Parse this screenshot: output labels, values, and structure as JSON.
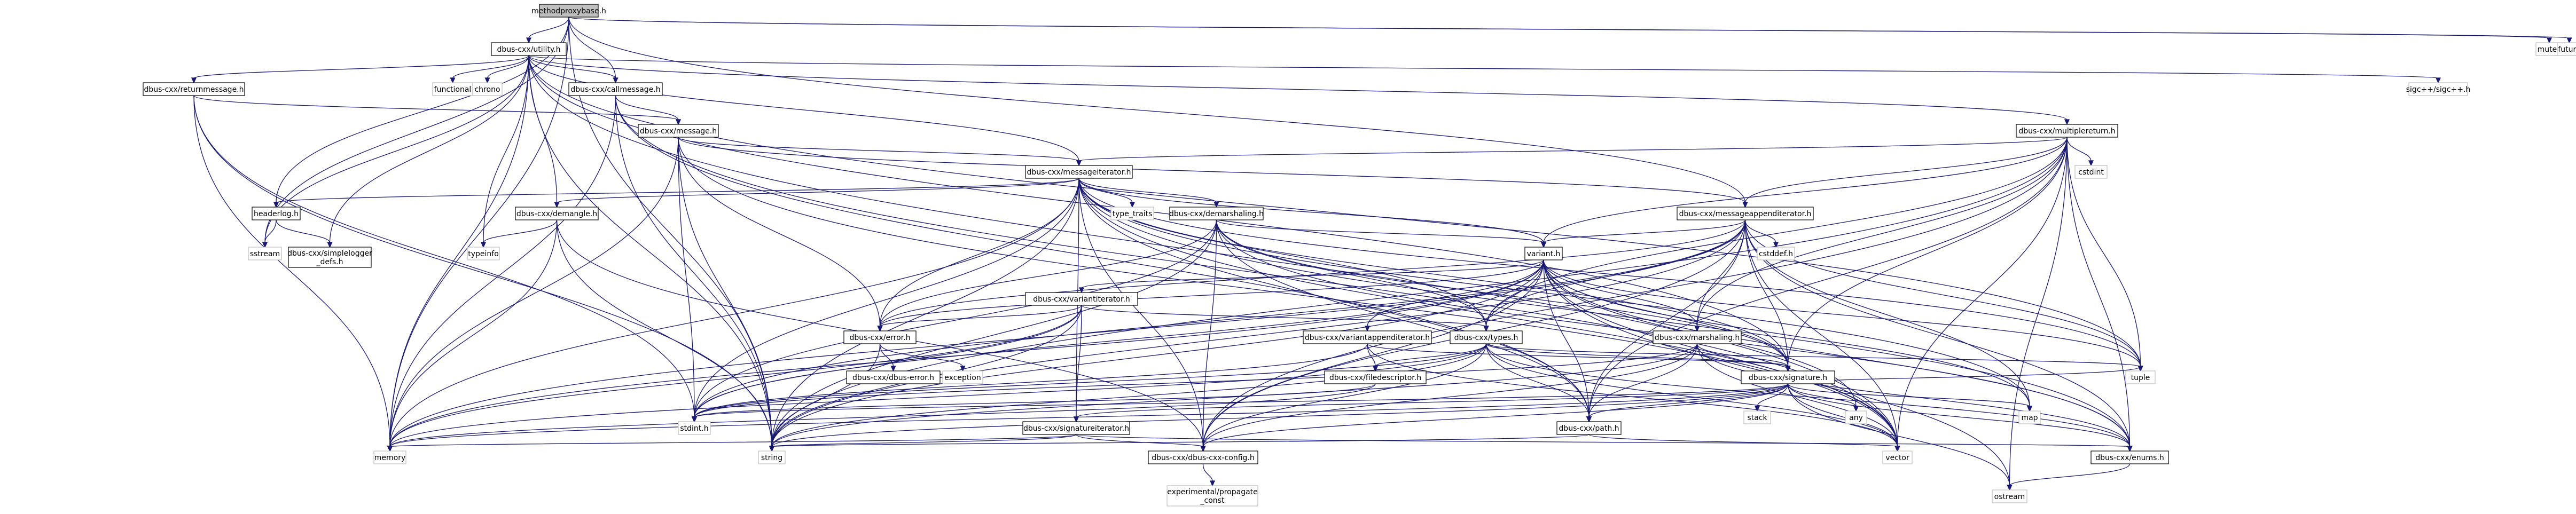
{
  "colors": {
    "edge": "#191970",
    "border": "#000000",
    "external_border": "#bfbfbf",
    "root_fill": "#bfbfbf",
    "node_fill": "#ffffff"
  },
  "nodes": [
    {
      "id": "root",
      "label": [
        "methodproxybase.h"
      ],
      "kind": "root"
    },
    {
      "id": "utility",
      "label": [
        "dbus-cxx/utility.h"
      ],
      "kind": "file"
    },
    {
      "id": "mutex",
      "label": [
        "mutex"
      ],
      "kind": "external"
    },
    {
      "id": "future",
      "label": [
        "future"
      ],
      "kind": "external"
    },
    {
      "id": "returnmessage",
      "label": [
        "dbus-cxx/returnmessage.h"
      ],
      "kind": "file"
    },
    {
      "id": "functional",
      "label": [
        "functional"
      ],
      "kind": "external"
    },
    {
      "id": "chrono",
      "label": [
        "chrono"
      ],
      "kind": "external"
    },
    {
      "id": "callmessage",
      "label": [
        "dbus-cxx/callmessage.h"
      ],
      "kind": "file"
    },
    {
      "id": "sigc",
      "label": [
        "sigc++/sigc++.h"
      ],
      "kind": "external"
    },
    {
      "id": "message",
      "label": [
        "dbus-cxx/message.h"
      ],
      "kind": "file"
    },
    {
      "id": "multiplereturn",
      "label": [
        "dbus-cxx/multiplereturn.h"
      ],
      "kind": "file"
    },
    {
      "id": "cstdint",
      "label": [
        "cstdint"
      ],
      "kind": "external"
    },
    {
      "id": "messageiterator",
      "label": [
        "dbus-cxx/messageiterator.h"
      ],
      "kind": "file"
    },
    {
      "id": "headerlog",
      "label": [
        "headerlog.h"
      ],
      "kind": "file"
    },
    {
      "id": "demangle",
      "label": [
        "dbus-cxx/demangle.h"
      ],
      "kind": "file"
    },
    {
      "id": "typetraits",
      "label": [
        "type_traits"
      ],
      "kind": "external"
    },
    {
      "id": "demarshaling",
      "label": [
        "dbus-cxx/demarshaling.h"
      ],
      "kind": "file"
    },
    {
      "id": "messageappenditerator",
      "label": [
        "dbus-cxx/messageappenditerator.h"
      ],
      "kind": "file"
    },
    {
      "id": "sstream",
      "label": [
        "sstream"
      ],
      "kind": "external"
    },
    {
      "id": "simplelogger",
      "label": [
        "dbus-cxx/simplelogger",
        "_defs.h"
      ],
      "kind": "file"
    },
    {
      "id": "typeinfo",
      "label": [
        "typeinfo"
      ],
      "kind": "external"
    },
    {
      "id": "cstddef",
      "label": [
        "cstddef.h"
      ],
      "kind": "external"
    },
    {
      "id": "variant",
      "label": [
        "variant.h"
      ],
      "kind": "file"
    },
    {
      "id": "variantiterator",
      "label": [
        "dbus-cxx/variantiterator.h"
      ],
      "kind": "file"
    },
    {
      "id": "error",
      "label": [
        "dbus-cxx/error.h"
      ],
      "kind": "file"
    },
    {
      "id": "variantappenditerator",
      "label": [
        "dbus-cxx/variantappenditerator.h"
      ],
      "kind": "file"
    },
    {
      "id": "types",
      "label": [
        "dbus-cxx/types.h"
      ],
      "kind": "file"
    },
    {
      "id": "marshaling",
      "label": [
        "dbus-cxx/marshaling.h"
      ],
      "kind": "file"
    },
    {
      "id": "dbuserror",
      "label": [
        "dbus-cxx/dbus-error.h"
      ],
      "kind": "file"
    },
    {
      "id": "exception",
      "label": [
        "exception"
      ],
      "kind": "external"
    },
    {
      "id": "filedescriptor",
      "label": [
        "dbus-cxx/filedescriptor.h"
      ],
      "kind": "file"
    },
    {
      "id": "signature",
      "label": [
        "dbus-cxx/signature.h"
      ],
      "kind": "file"
    },
    {
      "id": "tuple",
      "label": [
        "tuple"
      ],
      "kind": "external"
    },
    {
      "id": "any",
      "label": [
        "any"
      ],
      "kind": "external"
    },
    {
      "id": "map",
      "label": [
        "map"
      ],
      "kind": "external"
    },
    {
      "id": "stdint",
      "label": [
        "stdint.h"
      ],
      "kind": "external"
    },
    {
      "id": "path",
      "label": [
        "dbus-cxx/path.h"
      ],
      "kind": "file"
    },
    {
      "id": "stack",
      "label": [
        "stack"
      ],
      "kind": "external"
    },
    {
      "id": "signatureiterator",
      "label": [
        "dbus-cxx/signatureiterator.h"
      ],
      "kind": "file"
    },
    {
      "id": "memory",
      "label": [
        "memory"
      ],
      "kind": "external"
    },
    {
      "id": "string",
      "label": [
        "string"
      ],
      "kind": "external"
    },
    {
      "id": "config",
      "label": [
        "dbus-cxx/dbus-cxx-config.h"
      ],
      "kind": "file"
    },
    {
      "id": "vector",
      "label": [
        "vector"
      ],
      "kind": "external"
    },
    {
      "id": "enums",
      "label": [
        "dbus-cxx/enums.h"
      ],
      "kind": "file"
    },
    {
      "id": "ostream",
      "label": [
        "ostream"
      ],
      "kind": "external"
    },
    {
      "id": "propagate",
      "label": [
        "experimental/propagate",
        "_const"
      ],
      "kind": "external"
    }
  ],
  "edges": [
    [
      "root",
      "utility"
    ],
    [
      "root",
      "mutex"
    ],
    [
      "root",
      "future"
    ],
    [
      "root",
      "callmessage"
    ],
    [
      "root",
      "headerlog"
    ],
    [
      "root",
      "sstream"
    ],
    [
      "root",
      "memory"
    ],
    [
      "root",
      "string"
    ],
    [
      "root",
      "messageappenditerator"
    ],
    [
      "utility",
      "returnmessage"
    ],
    [
      "utility",
      "functional"
    ],
    [
      "utility",
      "chrono"
    ],
    [
      "utility",
      "callmessage"
    ],
    [
      "utility",
      "sigc"
    ],
    [
      "utility",
      "multiplereturn"
    ],
    [
      "utility",
      "messageiterator"
    ],
    [
      "utility",
      "demangle"
    ],
    [
      "utility",
      "simplelogger"
    ],
    [
      "utility",
      "typeinfo"
    ],
    [
      "utility",
      "sstream"
    ],
    [
      "utility",
      "memory"
    ],
    [
      "utility",
      "string"
    ],
    [
      "utility",
      "tuple"
    ],
    [
      "utility",
      "vector"
    ],
    [
      "utility",
      "signature"
    ],
    [
      "returnmessage",
      "message"
    ],
    [
      "returnmessage",
      "memory"
    ],
    [
      "returnmessage",
      "string"
    ],
    [
      "returnmessage",
      "stdint"
    ],
    [
      "callmessage",
      "message"
    ],
    [
      "callmessage",
      "memory"
    ],
    [
      "callmessage",
      "string"
    ],
    [
      "callmessage",
      "path"
    ],
    [
      "callmessage",
      "vector"
    ],
    [
      "message",
      "messageiterator"
    ],
    [
      "message",
      "messageappenditerator"
    ],
    [
      "message",
      "error"
    ],
    [
      "message",
      "stdint"
    ],
    [
      "message",
      "memory"
    ],
    [
      "message",
      "string"
    ],
    [
      "message",
      "vector"
    ],
    [
      "multiplereturn",
      "cstdint"
    ],
    [
      "multiplereturn",
      "messageiterator"
    ],
    [
      "multiplereturn",
      "messageappenditerator"
    ],
    [
      "multiplereturn",
      "types"
    ],
    [
      "multiplereturn",
      "signature"
    ],
    [
      "multiplereturn",
      "tuple"
    ],
    [
      "multiplereturn",
      "marshaling"
    ],
    [
      "multiplereturn",
      "config"
    ],
    [
      "multiplereturn",
      "variant"
    ],
    [
      "multiplereturn",
      "vector"
    ],
    [
      "multiplereturn",
      "enums"
    ],
    [
      "multiplereturn",
      "ostream"
    ],
    [
      "multiplereturn",
      "path"
    ],
    [
      "multiplereturn",
      "string"
    ],
    [
      "messageiterator",
      "headerlog"
    ],
    [
      "messageiterator",
      "demangle"
    ],
    [
      "messageiterator",
      "typetraits"
    ],
    [
      "messageiterator",
      "demarshaling"
    ],
    [
      "messageiterator",
      "variant"
    ],
    [
      "messageiterator",
      "error"
    ],
    [
      "messageiterator",
      "signatureiterator"
    ],
    [
      "messageiterator",
      "types"
    ],
    [
      "messageiterator",
      "signature"
    ],
    [
      "messageiterator",
      "config"
    ],
    [
      "messageiterator",
      "stdint"
    ],
    [
      "messageiterator",
      "memory"
    ],
    [
      "messageiterator",
      "string"
    ],
    [
      "messageiterator",
      "vector"
    ],
    [
      "messageiterator",
      "tuple"
    ],
    [
      "messageiterator",
      "map"
    ],
    [
      "messageiterator",
      "enums"
    ],
    [
      "messageiterator",
      "path"
    ],
    [
      "headerlog",
      "sstream"
    ],
    [
      "headerlog",
      "simplelogger"
    ],
    [
      "demangle",
      "typeinfo"
    ],
    [
      "demangle",
      "string"
    ],
    [
      "demangle",
      "memory"
    ],
    [
      "demangle",
      "config"
    ],
    [
      "demarshaling",
      "variant"
    ],
    [
      "demarshaling",
      "signature"
    ],
    [
      "demarshaling",
      "config"
    ],
    [
      "demarshaling",
      "error"
    ],
    [
      "demarshaling",
      "string"
    ],
    [
      "demarshaling",
      "stdint"
    ],
    [
      "demarshaling",
      "path"
    ],
    [
      "demarshaling",
      "enums"
    ],
    [
      "demarshaling",
      "types"
    ],
    [
      "messageappenditerator",
      "cstddef"
    ],
    [
      "messageappenditerator",
      "variant"
    ],
    [
      "messageappenditerator",
      "marshaling"
    ],
    [
      "messageappenditerator",
      "signature"
    ],
    [
      "messageappenditerator",
      "types"
    ],
    [
      "messageappenditerator",
      "config"
    ],
    [
      "messageappenditerator",
      "tuple"
    ],
    [
      "messageappenditerator",
      "map"
    ],
    [
      "messageappenditerator",
      "vector"
    ],
    [
      "messageappenditerator",
      "path"
    ],
    [
      "messageappenditerator",
      "error"
    ],
    [
      "messageappenditerator",
      "memory"
    ],
    [
      "messageappenditerator",
      "string"
    ],
    [
      "messageappenditerator",
      "enums"
    ],
    [
      "messageappenditerator",
      "stdint"
    ],
    [
      "variant",
      "variantiterator"
    ],
    [
      "variant",
      "error"
    ],
    [
      "variant",
      "variantappenditerator"
    ],
    [
      "variant",
      "types"
    ],
    [
      "variant",
      "marshaling"
    ],
    [
      "variant",
      "signature"
    ],
    [
      "variant",
      "tuple"
    ],
    [
      "variant",
      "any"
    ],
    [
      "variant",
      "map"
    ],
    [
      "variant",
      "stdint"
    ],
    [
      "variant",
      "path"
    ],
    [
      "variant",
      "memory"
    ],
    [
      "variant",
      "string"
    ],
    [
      "variant",
      "config"
    ],
    [
      "variant",
      "vector"
    ],
    [
      "variant",
      "enums"
    ],
    [
      "variant",
      "ostream"
    ],
    [
      "variantiterator",
      "error"
    ],
    [
      "variantiterator",
      "types"
    ],
    [
      "variantiterator",
      "signatureiterator"
    ],
    [
      "variantiterator",
      "stdint"
    ],
    [
      "variantiterator",
      "string"
    ],
    [
      "variantiterator",
      "memory"
    ],
    [
      "error",
      "dbuserror"
    ],
    [
      "error",
      "exception"
    ],
    [
      "error",
      "string"
    ],
    [
      "variantappenditerator",
      "filedescriptor"
    ],
    [
      "variantappenditerator",
      "signature"
    ],
    [
      "variantappenditerator",
      "vector"
    ],
    [
      "variantappenditerator",
      "stdint"
    ],
    [
      "types",
      "filedescriptor"
    ],
    [
      "types",
      "signature"
    ],
    [
      "types",
      "path"
    ],
    [
      "types",
      "config"
    ],
    [
      "types",
      "string"
    ],
    [
      "types",
      "stdint"
    ],
    [
      "types",
      "vector"
    ],
    [
      "types",
      "tuple"
    ],
    [
      "types",
      "enums"
    ],
    [
      "types",
      "memory"
    ],
    [
      "marshaling",
      "path"
    ],
    [
      "marshaling",
      "signature"
    ],
    [
      "marshaling",
      "config"
    ],
    [
      "marshaling",
      "vector"
    ],
    [
      "marshaling",
      "string"
    ],
    [
      "marshaling",
      "enums"
    ],
    [
      "marshaling",
      "stdint"
    ],
    [
      "filedescriptor",
      "memory"
    ],
    [
      "filedescriptor",
      "stdint"
    ],
    [
      "signature",
      "signatureiterator"
    ],
    [
      "signature",
      "stack"
    ],
    [
      "signature",
      "any"
    ],
    [
      "signature",
      "map"
    ],
    [
      "signature",
      "string"
    ],
    [
      "signature",
      "memory"
    ],
    [
      "signature",
      "vector"
    ],
    [
      "signature",
      "enums"
    ],
    [
      "signature",
      "config"
    ],
    [
      "signature",
      "path"
    ],
    [
      "signature",
      "stdint"
    ],
    [
      "signature",
      "ostream"
    ],
    [
      "signature",
      "tuple"
    ],
    [
      "path",
      "string"
    ],
    [
      "path",
      "vector"
    ],
    [
      "signatureiterator",
      "memory"
    ],
    [
      "signatureiterator",
      "string"
    ],
    [
      "signatureiterator",
      "config"
    ],
    [
      "signatureiterator",
      "enums"
    ],
    [
      "config",
      "propagate"
    ],
    [
      "enums",
      "ostream"
    ]
  ]
}
